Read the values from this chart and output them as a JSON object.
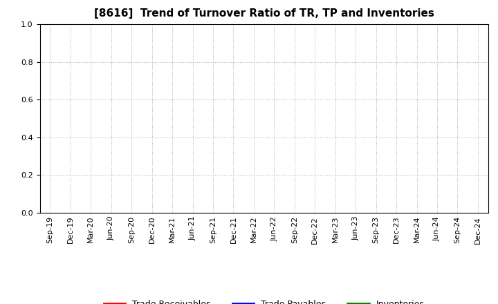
{
  "title": "[8616]  Trend of Turnover Ratio of TR, TP and Inventories",
  "title_fontsize": 11,
  "title_fontweight": "bold",
  "ylim": [
    0.0,
    1.0
  ],
  "yticks": [
    0.0,
    0.2,
    0.4,
    0.6,
    0.8,
    1.0
  ],
  "xtick_labels": [
    "Sep-19",
    "Dec-19",
    "Mar-20",
    "Jun-20",
    "Sep-20",
    "Dec-20",
    "Mar-21",
    "Jun-21",
    "Sep-21",
    "Dec-21",
    "Mar-22",
    "Jun-22",
    "Sep-22",
    "Dec-22",
    "Mar-23",
    "Jun-23",
    "Sep-23",
    "Dec-23",
    "Mar-24",
    "Jun-24",
    "Sep-24",
    "Dec-24"
  ],
  "legend_entries": [
    {
      "label": "Trade Receivables",
      "color": "#ff0000"
    },
    {
      "label": "Trade Payables",
      "color": "#0000ff"
    },
    {
      "label": "Inventories",
      "color": "#008000"
    }
  ],
  "grid_color": "#aaaaaa",
  "grid_linestyle": ":",
  "background_color": "#ffffff",
  "plot_area_color": "#ffffff",
  "tick_fontsize": 8,
  "legend_fontsize": 9,
  "spine_color": "#000000"
}
